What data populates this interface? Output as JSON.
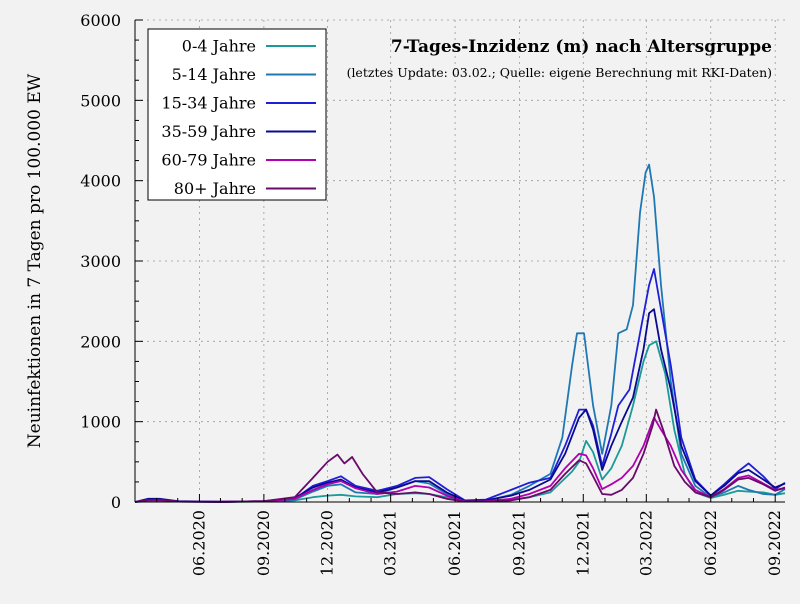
{
  "chart_data": {
    "type": "line",
    "title": "7-Tages-Inzidenz (m) nach Altersgruppe",
    "subtitle": "(letztes Update: 03.02.; Quelle: eigene Berechnung mit RKI-Daten)",
    "xlabel": "",
    "ylabel": "Neuinfektionen in 7 Tagen pro 100.000 EW",
    "ylim": [
      0,
      6000
    ],
    "xlim": [
      "2020-03-01",
      "2022-09-15"
    ],
    "y_ticks": [
      0,
      1000,
      2000,
      3000,
      4000,
      5000,
      6000
    ],
    "x_ticks": [
      {
        "date": "2020-06-01",
        "label": "06.2020"
      },
      {
        "date": "2020-09-01",
        "label": "09.2020"
      },
      {
        "date": "2020-12-01",
        "label": "12.2020"
      },
      {
        "date": "2021-03-01",
        "label": "03.2021"
      },
      {
        "date": "2021-06-01",
        "label": "06.2021"
      },
      {
        "date": "2021-09-01",
        "label": "09.2021"
      },
      {
        "date": "2021-12-01",
        "label": "12.2021"
      },
      {
        "date": "2022-03-01",
        "label": "03.2022"
      },
      {
        "date": "2022-06-01",
        "label": "06.2022"
      },
      {
        "date": "2022-09-01",
        "label": "09.2022"
      }
    ],
    "grid": true,
    "legend_position": "top-left",
    "series": [
      {
        "name": "0-4 Jahre",
        "color": "#1a9a98",
        "points": [
          [
            "2020-03-01",
            0
          ],
          [
            "2020-03-20",
            15
          ],
          [
            "2020-04-05",
            20
          ],
          [
            "2020-05-01",
            5
          ],
          [
            "2020-07-01",
            2
          ],
          [
            "2020-09-01",
            5
          ],
          [
            "2020-10-15",
            20
          ],
          [
            "2020-11-10",
            60
          ],
          [
            "2020-12-01",
            80
          ],
          [
            "2020-12-20",
            90
          ],
          [
            "2021-01-10",
            70
          ],
          [
            "2021-02-10",
            60
          ],
          [
            "2021-03-10",
            100
          ],
          [
            "2021-04-05",
            110
          ],
          [
            "2021-04-25",
            100
          ],
          [
            "2021-05-20",
            60
          ],
          [
            "2021-06-15",
            10
          ],
          [
            "2021-07-15",
            10
          ],
          [
            "2021-08-20",
            30
          ],
          [
            "2021-09-15",
            60
          ],
          [
            "2021-10-15",
            120
          ],
          [
            "2021-11-15",
            380
          ],
          [
            "2021-11-25",
            500
          ],
          [
            "2021-12-05",
            760
          ],
          [
            "2021-12-15",
            620
          ],
          [
            "2021-12-28",
            280
          ],
          [
            "2022-01-10",
            420
          ],
          [
            "2022-01-25",
            700
          ],
          [
            "2022-02-10",
            1200
          ],
          [
            "2022-02-25",
            1750
          ],
          [
            "2022-03-05",
            1950
          ],
          [
            "2022-03-15",
            2000
          ],
          [
            "2022-03-28",
            1600
          ],
          [
            "2022-04-10",
            900
          ],
          [
            "2022-04-25",
            350
          ],
          [
            "2022-05-10",
            120
          ],
          [
            "2022-06-01",
            50
          ],
          [
            "2022-06-20",
            90
          ],
          [
            "2022-07-10",
            140
          ],
          [
            "2022-07-25",
            130
          ],
          [
            "2022-08-15",
            120
          ],
          [
            "2022-09-01",
            90
          ],
          [
            "2022-09-15",
            110
          ]
        ]
      },
      {
        "name": "5-14 Jahre",
        "color": "#1f78b4",
        "points": [
          [
            "2020-03-01",
            0
          ],
          [
            "2020-03-20",
            10
          ],
          [
            "2020-04-05",
            15
          ],
          [
            "2020-05-01",
            5
          ],
          [
            "2020-07-01",
            2
          ],
          [
            "2020-09-01",
            5
          ],
          [
            "2020-10-15",
            30
          ],
          [
            "2020-11-10",
            130
          ],
          [
            "2020-12-01",
            200
          ],
          [
            "2020-12-20",
            220
          ],
          [
            "2021-01-10",
            120
          ],
          [
            "2021-02-10",
            100
          ],
          [
            "2021-03-10",
            180
          ],
          [
            "2021-04-05",
            260
          ],
          [
            "2021-04-25",
            230
          ],
          [
            "2021-05-20",
            100
          ],
          [
            "2021-06-15",
            10
          ],
          [
            "2021-07-15",
            15
          ],
          [
            "2021-08-20",
            90
          ],
          [
            "2021-09-15",
            200
          ],
          [
            "2021-10-15",
            350
          ],
          [
            "2021-11-01",
            800
          ],
          [
            "2021-11-15",
            1700
          ],
          [
            "2021-11-22",
            2100
          ],
          [
            "2021-12-02",
            2100
          ],
          [
            "2021-12-15",
            1200
          ],
          [
            "2021-12-28",
            600
          ],
          [
            "2022-01-10",
            1200
          ],
          [
            "2022-01-20",
            2100
          ],
          [
            "2022-02-01",
            2150
          ],
          [
            "2022-02-10",
            2450
          ],
          [
            "2022-02-20",
            3600
          ],
          [
            "2022-02-28",
            4100
          ],
          [
            "2022-03-05",
            4200
          ],
          [
            "2022-03-12",
            3800
          ],
          [
            "2022-03-22",
            2700
          ],
          [
            "2022-04-05",
            1500
          ],
          [
            "2022-04-20",
            600
          ],
          [
            "2022-05-10",
            200
          ],
          [
            "2022-06-01",
            60
          ],
          [
            "2022-06-20",
            120
          ],
          [
            "2022-07-10",
            200
          ],
          [
            "2022-07-25",
            150
          ],
          [
            "2022-08-15",
            100
          ],
          [
            "2022-09-01",
            90
          ],
          [
            "2022-09-15",
            160
          ]
        ]
      },
      {
        "name": "15-34 Jahre",
        "color": "#1f1fd8",
        "points": [
          [
            "2020-03-01",
            0
          ],
          [
            "2020-03-20",
            25
          ],
          [
            "2020-04-05",
            30
          ],
          [
            "2020-05-01",
            8
          ],
          [
            "2020-07-01",
            3
          ],
          [
            "2020-09-01",
            10
          ],
          [
            "2020-10-15",
            40
          ],
          [
            "2020-11-10",
            200
          ],
          [
            "2020-12-01",
            260
          ],
          [
            "2020-12-20",
            320
          ],
          [
            "2021-01-10",
            200
          ],
          [
            "2021-02-10",
            140
          ],
          [
            "2021-03-10",
            200
          ],
          [
            "2021-04-05",
            300
          ],
          [
            "2021-04-25",
            310
          ],
          [
            "2021-05-20",
            160
          ],
          [
            "2021-06-15",
            20
          ],
          [
            "2021-07-15",
            30
          ],
          [
            "2021-08-20",
            150
          ],
          [
            "2021-09-15",
            240
          ],
          [
            "2021-10-15",
            300
          ],
          [
            "2021-11-05",
            700
          ],
          [
            "2021-11-25",
            1150
          ],
          [
            "2021-12-05",
            1150
          ],
          [
            "2021-12-15",
            950
          ],
          [
            "2021-12-28",
            450
          ],
          [
            "2022-01-10",
            850
          ],
          [
            "2022-01-20",
            1200
          ],
          [
            "2022-02-05",
            1400
          ],
          [
            "2022-02-20",
            2100
          ],
          [
            "2022-03-05",
            2700
          ],
          [
            "2022-03-12",
            2900
          ],
          [
            "2022-03-22",
            2400
          ],
          [
            "2022-04-05",
            1700
          ],
          [
            "2022-04-20",
            800
          ],
          [
            "2022-05-10",
            280
          ],
          [
            "2022-06-01",
            80
          ],
          [
            "2022-06-20",
            220
          ],
          [
            "2022-07-10",
            380
          ],
          [
            "2022-07-25",
            480
          ],
          [
            "2022-08-15",
            320
          ],
          [
            "2022-09-01",
            160
          ],
          [
            "2022-09-15",
            240
          ]
        ]
      },
      {
        "name": "35-59 Jahre",
        "color": "#0a0a90",
        "points": [
          [
            "2020-03-01",
            0
          ],
          [
            "2020-03-20",
            40
          ],
          [
            "2020-04-05",
            40
          ],
          [
            "2020-05-01",
            10
          ],
          [
            "2020-07-01",
            3
          ],
          [
            "2020-09-01",
            10
          ],
          [
            "2020-10-15",
            50
          ],
          [
            "2020-11-10",
            180
          ],
          [
            "2020-12-01",
            240
          ],
          [
            "2020-12-20",
            280
          ],
          [
            "2021-01-10",
            180
          ],
          [
            "2021-02-10",
            120
          ],
          [
            "2021-03-10",
            180
          ],
          [
            "2021-04-05",
            260
          ],
          [
            "2021-04-25",
            260
          ],
          [
            "2021-05-20",
            120
          ],
          [
            "2021-06-15",
            15
          ],
          [
            "2021-07-15",
            20
          ],
          [
            "2021-08-20",
            80
          ],
          [
            "2021-09-15",
            150
          ],
          [
            "2021-10-15",
            280
          ],
          [
            "2021-11-05",
            600
          ],
          [
            "2021-11-25",
            1050
          ],
          [
            "2021-12-05",
            1150
          ],
          [
            "2021-12-15",
            900
          ],
          [
            "2021-12-28",
            400
          ],
          [
            "2022-01-10",
            700
          ],
          [
            "2022-01-25",
            1000
          ],
          [
            "2022-02-10",
            1300
          ],
          [
            "2022-02-25",
            1900
          ],
          [
            "2022-03-05",
            2350
          ],
          [
            "2022-03-12",
            2400
          ],
          [
            "2022-03-22",
            1900
          ],
          [
            "2022-04-05",
            1400
          ],
          [
            "2022-04-20",
            700
          ],
          [
            "2022-05-10",
            260
          ],
          [
            "2022-06-01",
            80
          ],
          [
            "2022-06-20",
            200
          ],
          [
            "2022-07-10",
            360
          ],
          [
            "2022-07-25",
            400
          ],
          [
            "2022-08-15",
            280
          ],
          [
            "2022-09-01",
            180
          ],
          [
            "2022-09-15",
            230
          ]
        ]
      },
      {
        "name": "60-79 Jahre",
        "color": "#b000b0",
        "points": [
          [
            "2020-03-01",
            0
          ],
          [
            "2020-03-20",
            25
          ],
          [
            "2020-04-05",
            25
          ],
          [
            "2020-05-01",
            5
          ],
          [
            "2020-07-01",
            2
          ],
          [
            "2020-09-01",
            8
          ],
          [
            "2020-10-15",
            40
          ],
          [
            "2020-11-10",
            150
          ],
          [
            "2020-12-01",
            220
          ],
          [
            "2020-12-20",
            260
          ],
          [
            "2021-01-10",
            170
          ],
          [
            "2021-02-10",
            100
          ],
          [
            "2021-03-10",
            130
          ],
          [
            "2021-04-05",
            200
          ],
          [
            "2021-04-25",
            180
          ],
          [
            "2021-05-20",
            80
          ],
          [
            "2021-06-15",
            8
          ],
          [
            "2021-07-15",
            10
          ],
          [
            "2021-08-20",
            40
          ],
          [
            "2021-09-15",
            100
          ],
          [
            "2021-10-15",
            200
          ],
          [
            "2021-11-05",
            420
          ],
          [
            "2021-11-25",
            600
          ],
          [
            "2021-12-05",
            580
          ],
          [
            "2021-12-15",
            420
          ],
          [
            "2021-12-28",
            160
          ],
          [
            "2022-01-10",
            220
          ],
          [
            "2022-01-25",
            300
          ],
          [
            "2022-02-10",
            450
          ],
          [
            "2022-02-25",
            700
          ],
          [
            "2022-03-12",
            1050
          ],
          [
            "2022-03-22",
            900
          ],
          [
            "2022-04-05",
            700
          ],
          [
            "2022-04-20",
            400
          ],
          [
            "2022-05-10",
            150
          ],
          [
            "2022-06-01",
            60
          ],
          [
            "2022-06-20",
            160
          ],
          [
            "2022-07-10",
            300
          ],
          [
            "2022-07-25",
            330
          ],
          [
            "2022-08-15",
            230
          ],
          [
            "2022-09-01",
            150
          ],
          [
            "2022-09-15",
            170
          ]
        ]
      },
      {
        "name": "80+ Jahre",
        "color": "#6a0a6a",
        "points": [
          [
            "2020-03-01",
            0
          ],
          [
            "2020-03-20",
            25
          ],
          [
            "2020-04-05",
            30
          ],
          [
            "2020-05-01",
            5
          ],
          [
            "2020-07-01",
            2
          ],
          [
            "2020-09-01",
            10
          ],
          [
            "2020-10-15",
            60
          ],
          [
            "2020-11-10",
            300
          ],
          [
            "2020-12-01",
            500
          ],
          [
            "2020-12-15",
            590
          ],
          [
            "2020-12-25",
            480
          ],
          [
            "2021-01-05",
            560
          ],
          [
            "2021-01-20",
            350
          ],
          [
            "2021-02-10",
            120
          ],
          [
            "2021-03-10",
            100
          ],
          [
            "2021-04-05",
            120
          ],
          [
            "2021-04-25",
            100
          ],
          [
            "2021-05-20",
            40
          ],
          [
            "2021-06-15",
            5
          ],
          [
            "2021-07-15",
            5
          ],
          [
            "2021-08-20",
            20
          ],
          [
            "2021-09-15",
            60
          ],
          [
            "2021-10-15",
            150
          ],
          [
            "2021-11-05",
            350
          ],
          [
            "2021-11-25",
            520
          ],
          [
            "2021-12-05",
            480
          ],
          [
            "2021-12-15",
            320
          ],
          [
            "2021-12-28",
            100
          ],
          [
            "2022-01-10",
            90
          ],
          [
            "2022-01-25",
            150
          ],
          [
            "2022-02-10",
            300
          ],
          [
            "2022-02-25",
            600
          ],
          [
            "2022-03-10",
            950
          ],
          [
            "2022-03-15",
            1150
          ],
          [
            "2022-03-25",
            900
          ],
          [
            "2022-04-10",
            450
          ],
          [
            "2022-04-25",
            250
          ],
          [
            "2022-05-10",
            120
          ],
          [
            "2022-06-01",
            60
          ],
          [
            "2022-06-20",
            150
          ],
          [
            "2022-07-10",
            280
          ],
          [
            "2022-07-25",
            300
          ],
          [
            "2022-08-15",
            220
          ],
          [
            "2022-09-01",
            140
          ],
          [
            "2022-09-15",
            180
          ]
        ]
      }
    ]
  }
}
